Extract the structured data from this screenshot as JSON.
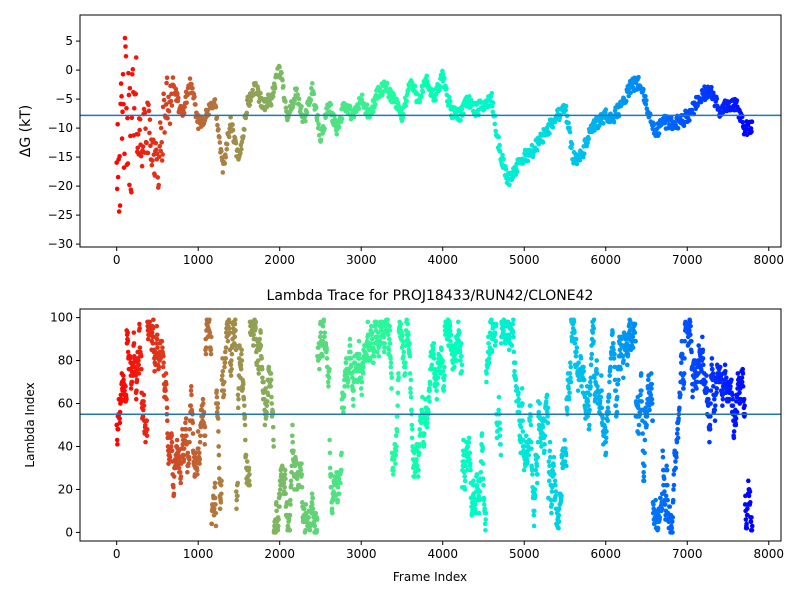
{
  "chart_data": [
    {
      "type": "scatter",
      "title": "",
      "xlabel": "",
      "ylabel": "ΔG (kT)",
      "xlim": [
        -450,
        8150
      ],
      "ylim": [
        -30.5,
        9.5
      ],
      "xticks": [
        0,
        1000,
        2000,
        3000,
        4000,
        5000,
        6000,
        7000,
        8000
      ],
      "yticks": [
        5,
        0,
        -5,
        -10,
        -15,
        -20,
        -25,
        -30
      ],
      "xtick_labels": [
        "0",
        "1000",
        "2000",
        "3000",
        "4000",
        "5000",
        "6000",
        "7000",
        "8000"
      ],
      "ytick_labels": [
        "5",
        "0",
        "−5",
        "−10",
        "−15",
        "−20",
        "−25",
        "−30"
      ],
      "hline": -7.8,
      "hline_color": "#1f77b4",
      "colormap": "rainbow (red at frame 0 → violet at last frame)",
      "n_frames": 7800,
      "trajectory_knots": [
        [
          0,
          -10
        ],
        [
          50,
          -15
        ],
        [
          100,
          -5
        ],
        [
          150,
          -12
        ],
        [
          200,
          -8
        ],
        [
          300,
          -12
        ],
        [
          400,
          -10
        ],
        [
          500,
          -18
        ],
        [
          600,
          -6
        ],
        [
          700,
          -3
        ],
        [
          800,
          -8
        ],
        [
          900,
          -2
        ],
        [
          1000,
          -9
        ],
        [
          1100,
          -8
        ],
        [
          1200,
          -5
        ],
        [
          1300,
          -17
        ],
        [
          1400,
          -9
        ],
        [
          1500,
          -16
        ],
        [
          1600,
          -6
        ],
        [
          1700,
          -3
        ],
        [
          1800,
          -6
        ],
        [
          1900,
          -5
        ],
        [
          2000,
          0.5
        ],
        [
          2100,
          -8
        ],
        [
          2200,
          -4
        ],
        [
          2300,
          -9
        ],
        [
          2400,
          -3
        ],
        [
          2500,
          -12
        ],
        [
          2600,
          -6
        ],
        [
          2700,
          -10
        ],
        [
          2800,
          -6
        ],
        [
          2900,
          -8
        ],
        [
          3000,
          -5
        ],
        [
          3100,
          -8
        ],
        [
          3200,
          -4
        ],
        [
          3300,
          -3
        ],
        [
          3400,
          -5
        ],
        [
          3500,
          -8
        ],
        [
          3600,
          -2
        ],
        [
          3700,
          -5
        ],
        [
          3800,
          -2
        ],
        [
          3900,
          -5
        ],
        [
          4000,
          -1
        ],
        [
          4100,
          -7
        ],
        [
          4200,
          -8
        ],
        [
          4300,
          -5
        ],
        [
          4400,
          -7
        ],
        [
          4500,
          -6
        ],
        [
          4600,
          -5
        ],
        [
          4700,
          -14
        ],
        [
          4800,
          -19
        ],
        [
          4900,
          -17
        ],
        [
          5000,
          -15
        ],
        [
          5100,
          -14
        ],
        [
          5200,
          -12
        ],
        [
          5300,
          -10
        ],
        [
          5400,
          -8
        ],
        [
          5500,
          -6
        ],
        [
          5600,
          -15
        ],
        [
          5700,
          -15
        ],
        [
          5800,
          -11
        ],
        [
          5900,
          -9
        ],
        [
          6000,
          -8
        ],
        [
          6100,
          -8
        ],
        [
          6200,
          -6
        ],
        [
          6300,
          -3
        ],
        [
          6400,
          -2
        ],
        [
          6500,
          -6
        ],
        [
          6600,
          -11
        ],
        [
          6700,
          -9
        ],
        [
          6800,
          -9
        ],
        [
          6900,
          -9
        ],
        [
          7000,
          -8
        ],
        [
          7100,
          -6
        ],
        [
          7200,
          -4
        ],
        [
          7300,
          -4
        ],
        [
          7400,
          -7
        ],
        [
          7500,
          -6
        ],
        [
          7600,
          -6
        ],
        [
          7700,
          -10
        ],
        [
          7780,
          -10
        ]
      ]
    },
    {
      "type": "scatter",
      "title": "Lambda Trace for PROJ18433/RUN42/CLONE42",
      "xlabel": "Frame Index",
      "ylabel": "Lambda Index",
      "xlim": [
        -450,
        8150
      ],
      "ylim": [
        -4,
        104
      ],
      "xticks": [
        0,
        1000,
        2000,
        3000,
        4000,
        5000,
        6000,
        7000,
        8000
      ],
      "yticks": [
        0,
        20,
        40,
        60,
        80,
        100
      ],
      "xtick_labels": [
        "0",
        "1000",
        "2000",
        "3000",
        "4000",
        "5000",
        "6000",
        "7000",
        "8000"
      ],
      "ytick_labels": [
        "0",
        "20",
        "40",
        "60",
        "80",
        "100"
      ],
      "hline": 55,
      "hline_color": "#1f77b4",
      "colormap": "rainbow (red at frame 0 → violet at last frame)",
      "n_frames": 7800,
      "lambda_range": [
        0,
        99
      ]
    }
  ]
}
